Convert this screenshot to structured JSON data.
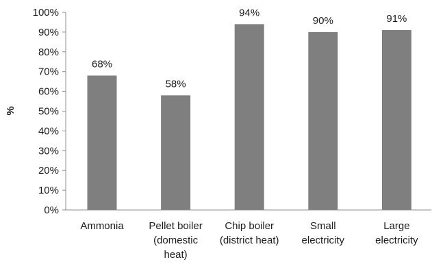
{
  "chart_data": {
    "type": "bar",
    "categories": [
      [
        "Ammonia"
      ],
      [
        "Pellet boiler",
        "(domestic",
        "heat)"
      ],
      [
        "Chip boiler",
        "(district heat)"
      ],
      [
        "Small",
        "electricity"
      ],
      [
        "Large",
        "electricity"
      ]
    ],
    "values": [
      68,
      58,
      94,
      90,
      91
    ],
    "data_labels": [
      "68%",
      "58%",
      "94%",
      "90%",
      "91%"
    ],
    "title": "",
    "xlabel": "",
    "ylabel": "%",
    "ylim": [
      0,
      100
    ],
    "yticks": [
      "0%",
      "10%",
      "20%",
      "30%",
      "40%",
      "50%",
      "60%",
      "70%",
      "80%",
      "90%",
      "100%"
    ],
    "grid": false,
    "bar_color": "#7f7f80",
    "axis_color": "#8c8c8c"
  }
}
